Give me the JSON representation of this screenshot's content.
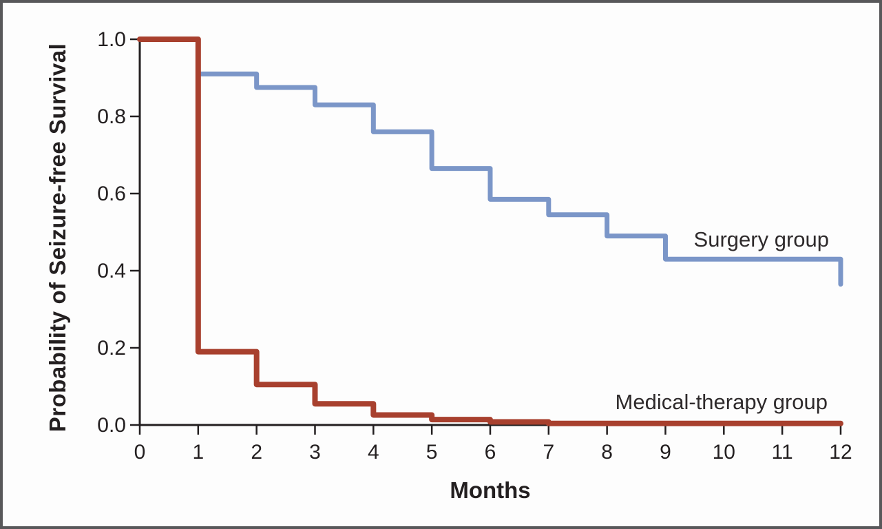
{
  "figure": {
    "background": "#fdfdfd",
    "border_color": "#58585a",
    "axis_color": "#231f20",
    "text_color": "#231f20"
  },
  "chart_data": {
    "type": "line",
    "subtype": "step-function (Kaplan-Meier survival curves)",
    "title": "",
    "xlabel": "Months",
    "ylabel": "Probability of Seizure-free Survival",
    "xlim": [
      0,
      12
    ],
    "ylim": [
      0.0,
      1.0
    ],
    "grid": false,
    "legend_position": "inline labels at right end of each curve",
    "x_ticks": [
      0,
      1,
      2,
      3,
      4,
      5,
      6,
      7,
      8,
      9,
      10,
      11,
      12
    ],
    "y_ticks": [
      0.0,
      0.2,
      0.4,
      0.6,
      0.8,
      1.0
    ],
    "y_tick_labels": [
      "0.0",
      "0.2",
      "0.4",
      "0.6",
      "0.8",
      "1.0"
    ],
    "series": [
      {
        "name": "Surgery group",
        "color": "#7B96C8",
        "stroke_width": 7,
        "comment_step_semantics": "step_y[i] is the survival level from step_x[i] to step_x[i+1]; curve ends with a drop at end_x",
        "step_x": [
          0,
          1,
          2,
          3,
          4,
          5,
          6,
          7,
          8,
          9,
          12
        ],
        "step_y": [
          1.0,
          0.91,
          0.875,
          0.83,
          0.76,
          0.665,
          0.585,
          0.545,
          0.49,
          0.43,
          0.365
        ],
        "end_x": 12
      },
      {
        "name": "Medical-therapy group",
        "color": "#A8402E",
        "stroke_width": 8,
        "step_x": [
          0,
          1,
          2,
          3,
          4,
          5,
          6,
          7
        ],
        "step_y": [
          1.0,
          0.19,
          0.105,
          0.055,
          0.026,
          0.014,
          0.008,
          0.004
        ],
        "end_x": 12
      }
    ]
  }
}
